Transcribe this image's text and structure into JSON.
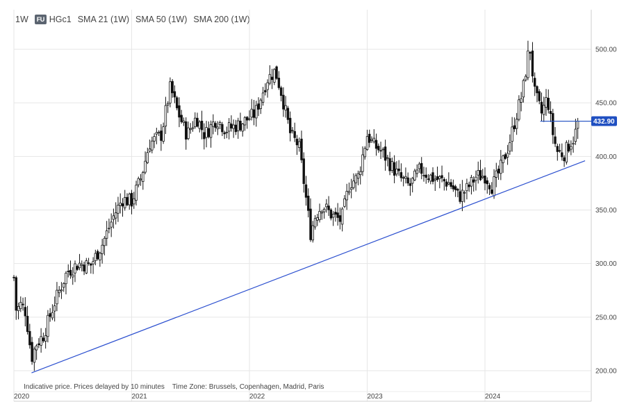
{
  "toolbar": {
    "interval": "1W",
    "symbol_badge": "FU",
    "symbol": "HGc1",
    "indicators": [
      "SMA 21 (1W)",
      "SMA 50 (1W)",
      "SMA 200 (1W)"
    ]
  },
  "footer_note": "Indicative price. Prices delayed by 10 minutes    Time Zone: Brussels, Copenhagen, Madrid, Paris",
  "chart_data": {
    "type": "candlestick",
    "symbol": "HGc1",
    "interval": "1W",
    "ylim": [
      180,
      530
    ],
    "y_ticks": [
      "200.00",
      "250.00",
      "300.00",
      "350.00",
      "400.00",
      "450.00",
      "500.00"
    ],
    "x_ticks": [
      "2020",
      "2021",
      "2022",
      "2023",
      "2024"
    ],
    "last_price": "432.90",
    "last_price_value": 432.9,
    "grid": true,
    "trendline": {
      "start": [
        2020.15,
        198
      ],
      "end": [
        2024.85,
        396
      ]
    },
    "colors": {
      "candle": "#111111",
      "trendline": "#2b4fcf",
      "price_label": "#1f4fc1",
      "grid": "#e6e6e6"
    },
    "anchors": [
      [
        2020.0,
        287
      ],
      [
        2020.02,
        256
      ],
      [
        2020.06,
        262
      ],
      [
        2020.1,
        255
      ],
      [
        2020.15,
        212
      ],
      [
        2020.19,
        225
      ],
      [
        2020.25,
        233
      ],
      [
        2020.35,
        265
      ],
      [
        2020.45,
        292
      ],
      [
        2020.55,
        300
      ],
      [
        2020.65,
        298
      ],
      [
        2020.75,
        318
      ],
      [
        2020.85,
        345
      ],
      [
        2020.92,
        360
      ],
      [
        2021.0,
        358
      ],
      [
        2021.08,
        380
      ],
      [
        2021.15,
        412
      ],
      [
        2021.25,
        420
      ],
      [
        2021.33,
        465
      ],
      [
        2021.38,
        445
      ],
      [
        2021.47,
        420
      ],
      [
        2021.55,
        437
      ],
      [
        2021.62,
        420
      ],
      [
        2021.72,
        435
      ],
      [
        2021.8,
        425
      ],
      [
        2021.92,
        430
      ],
      [
        2022.05,
        440
      ],
      [
        2022.15,
        472
      ],
      [
        2022.22,
        480
      ],
      [
        2022.27,
        460
      ],
      [
        2022.35,
        420
      ],
      [
        2022.42,
        410
      ],
      [
        2022.47,
        370
      ],
      [
        2022.52,
        328
      ],
      [
        2022.56,
        345
      ],
      [
        2022.62,
        355
      ],
      [
        2022.7,
        345
      ],
      [
        2022.78,
        340
      ],
      [
        2022.85,
        375
      ],
      [
        2022.92,
        380
      ],
      [
        2023.0,
        420
      ],
      [
        2023.06,
        410
      ],
      [
        2023.12,
        405
      ],
      [
        2023.2,
        392
      ],
      [
        2023.28,
        380
      ],
      [
        2023.36,
        372
      ],
      [
        2023.45,
        388
      ],
      [
        2023.55,
        380
      ],
      [
        2023.62,
        378
      ],
      [
        2023.7,
        375
      ],
      [
        2023.78,
        362
      ],
      [
        2023.85,
        370
      ],
      [
        2023.93,
        382
      ],
      [
        2024.0,
        382
      ],
      [
        2024.06,
        372
      ],
      [
        2024.12,
        385
      ],
      [
        2024.2,
        410
      ],
      [
        2024.27,
        440
      ],
      [
        2024.32,
        460
      ],
      [
        2024.38,
        505
      ],
      [
        2024.42,
        460
      ],
      [
        2024.48,
        440
      ],
      [
        2024.53,
        455
      ],
      [
        2024.57,
        425
      ],
      [
        2024.61,
        405
      ],
      [
        2024.67,
        402
      ],
      [
        2024.72,
        412
      ],
      [
        2024.76,
        418
      ],
      [
        2024.79,
        432.9
      ]
    ]
  }
}
